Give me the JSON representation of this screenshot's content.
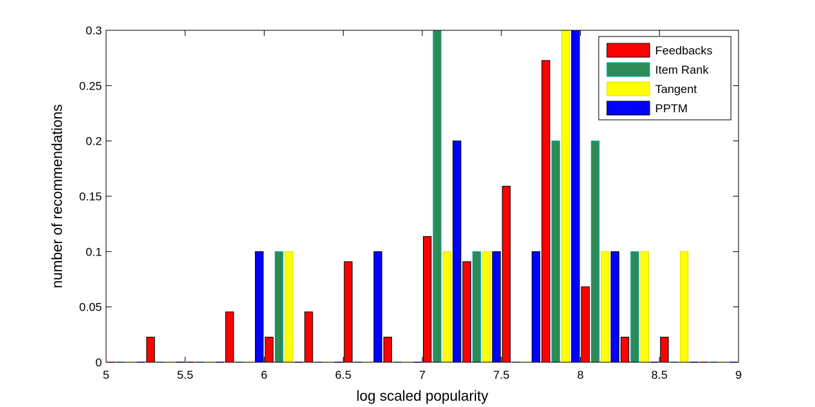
{
  "chart_data": {
    "type": "bar",
    "xlabel": "log scaled popularity",
    "ylabel": "number of recommendations",
    "xlim": [
      5,
      9
    ],
    "ylim": [
      0,
      0.3
    ],
    "xticks": [
      "5",
      "5.5",
      "6",
      "6.5",
      "7",
      "7.5",
      "8",
      "8.5",
      "9"
    ],
    "yticks": [
      "0",
      "0.05",
      "0.1",
      "0.15",
      "0.2",
      "0.25",
      "0.3"
    ],
    "bin_centers": [
      5.125,
      5.375,
      5.625,
      5.875,
      6.125,
      6.375,
      6.625,
      6.875,
      7.125,
      7.375,
      7.625,
      7.875,
      8.125,
      8.375,
      8.625,
      8.875
    ],
    "legend_position": "top-right",
    "grid": false,
    "series": [
      {
        "name": "Feedbacks",
        "color": "#ff0000",
        "values": [
          0,
          0.0227,
          0,
          0.0455,
          0.0227,
          0.0455,
          0.0909,
          0.0227,
          0.1136,
          0.0909,
          0.1591,
          0.2727,
          0.0682,
          0.0227,
          0.0227,
          0
        ]
      },
      {
        "name": "Item Rank",
        "color": "#2e8b57",
        "values": [
          0,
          0,
          0,
          0,
          0.1,
          0,
          0,
          0,
          0.3,
          0.1,
          0,
          0.2,
          0.2,
          0.1,
          0,
          0
        ]
      },
      {
        "name": "Tangent",
        "color": "#ffff00",
        "values": [
          0,
          0,
          0,
          0,
          0.1,
          0,
          0,
          0,
          0.1,
          0.1,
          0,
          0.3,
          0.1,
          0.1,
          0.1,
          0
        ]
      },
      {
        "name": "PPTM",
        "color": "#0000ff",
        "values": [
          0,
          0,
          0,
          0.1,
          0,
          0,
          0.1,
          0,
          0.2,
          0.1,
          0.1,
          0.3,
          0.1,
          0,
          0,
          0
        ]
      }
    ]
  }
}
